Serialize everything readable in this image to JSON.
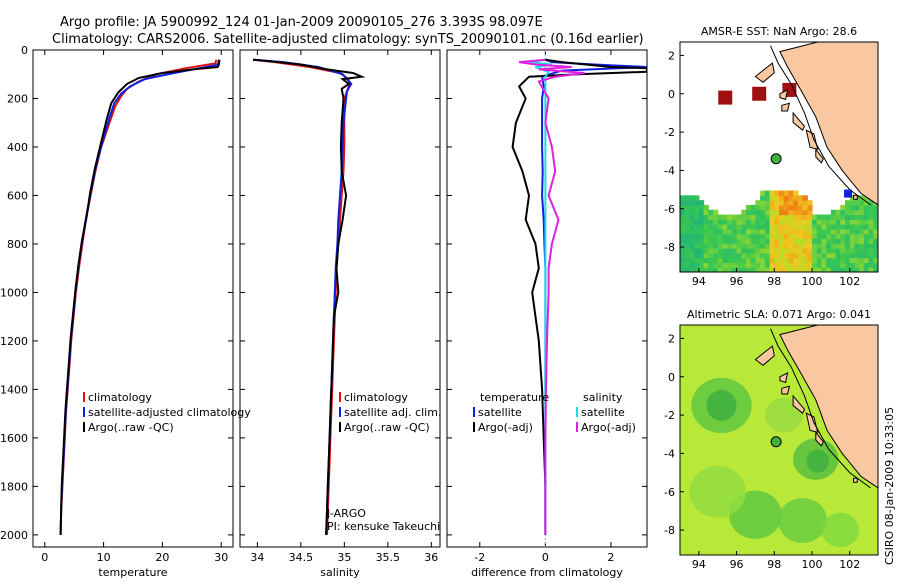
{
  "header": {
    "line1": "Argo profile: JA 5900992_124 01-Jan-2009 20090105_276 3.393S 98.097E",
    "line2": "Climatology: CARS2006. Satellite-adjusted climatology: synTS_20090101.nc (0.16d earlier)"
  },
  "side_text": "CSIRO 08-Jan-2009 10:33:05",
  "colors": {
    "climatology": "#e01010",
    "satellite": "#1020e0",
    "argo": "#000000",
    "satellite_diff": "#20d8e8",
    "argo_adj": "#e020e0",
    "land": "#f9c8a0"
  },
  "chart_data": [
    {
      "type": "line",
      "id": "temp",
      "xlabel": "temperature",
      "xlim": [
        -2,
        32
      ],
      "ylim": [
        2050,
        0
      ],
      "xticks": [
        0,
        10,
        20,
        30
      ],
      "yticks": [
        0,
        200,
        400,
        600,
        800,
        1000,
        1200,
        1400,
        1600,
        1800,
        2000
      ],
      "legend": [
        "climatology",
        "satellite-adjusted climatology",
        "Argo(..raw -QC)"
      ],
      "series": [
        {
          "name": "climatology",
          "color": "#e01010",
          "points": [
            [
              29.2,
              40
            ],
            [
              29.0,
              55
            ],
            [
              24,
              75
            ],
            [
              19,
              100
            ],
            [
              16,
              130
            ],
            [
              14,
              160
            ],
            [
              13,
              190
            ],
            [
              12,
              230
            ],
            [
              11,
              300
            ],
            [
              9.6,
              400
            ],
            [
              8.6,
              500
            ],
            [
              7.8,
              600
            ],
            [
              7.0,
              700
            ],
            [
              6.4,
              800
            ],
            [
              5.8,
              900
            ],
            [
              5.3,
              1000
            ],
            [
              4.9,
              1100
            ],
            [
              4.5,
              1200
            ],
            [
              4.2,
              1300
            ],
            [
              3.9,
              1400
            ],
            [
              3.6,
              1500
            ],
            [
              3.4,
              1600
            ],
            [
              3.2,
              1700
            ],
            [
              3.0,
              1800
            ],
            [
              2.8,
              1900
            ],
            [
              2.7,
              2000
            ]
          ]
        },
        {
          "name": "satellite",
          "color": "#1020e0",
          "points": [
            [
              29.6,
              40
            ],
            [
              29.5,
              55
            ],
            [
              29.2,
              62
            ],
            [
              22,
              95
            ],
            [
              17,
              120
            ],
            [
              14.5,
              150
            ],
            [
              13,
              180
            ],
            [
              11.8,
              220
            ],
            [
              11,
              280
            ],
            [
              9.8,
              380
            ],
            [
              8.7,
              480
            ],
            [
              7.9,
              580
            ],
            [
              7.1,
              680
            ],
            [
              6.4,
              780
            ],
            [
              5.8,
              880
            ],
            [
              5.3,
              980
            ],
            [
              4.9,
              1080
            ],
            [
              4.5,
              1180
            ],
            [
              4.2,
              1280
            ],
            [
              3.9,
              1380
            ],
            [
              3.6,
              1480
            ],
            [
              3.4,
              1580
            ],
            [
              3.2,
              1680
            ],
            [
              3.0,
              1780
            ],
            [
              2.8,
              1880
            ],
            [
              2.7,
              2000
            ]
          ]
        },
        {
          "name": "Argo",
          "color": "#000000",
          "points": [
            [
              29.7,
              40
            ],
            [
              29.6,
              60
            ],
            [
              29.4,
              70
            ],
            [
              26,
              78
            ],
            [
              20,
              95
            ],
            [
              16,
              115
            ],
            [
              14,
              140
            ],
            [
              12.5,
              175
            ],
            [
              11.3,
              220
            ],
            [
              10.5,
              290
            ],
            [
              9.5,
              390
            ],
            [
              8.5,
              490
            ],
            [
              7.7,
              590
            ],
            [
              7.1,
              690
            ],
            [
              6.3,
              790
            ],
            [
              5.7,
              890
            ],
            [
              5.2,
              990
            ],
            [
              4.8,
              1090
            ],
            [
              4.4,
              1190
            ],
            [
              4.1,
              1290
            ],
            [
              3.8,
              1390
            ],
            [
              3.5,
              1490
            ],
            [
              3.3,
              1590
            ],
            [
              3.1,
              1690
            ],
            [
              2.9,
              1790
            ],
            [
              2.8,
              1890
            ],
            [
              2.7,
              2000
            ]
          ]
        }
      ]
    },
    {
      "type": "line",
      "id": "sal",
      "xlabel": "salinity",
      "xlim": [
        33.8,
        36.1
      ],
      "ylim": [
        2050,
        0
      ],
      "xticks": [
        34,
        34.5,
        35,
        35.5,
        36
      ],
      "legend": [
        "climatology",
        "satellite adj. clim.",
        "Argo(..raw -QC)"
      ],
      "annotation": [
        "J-ARGO",
        "PI: kensuke Takeuchi"
      ],
      "series": [
        {
          "name": "climatology",
          "color": "#e01010",
          "points": [
            [
              33.95,
              40
            ],
            [
              34.2,
              50
            ],
            [
              34.6,
              70
            ],
            [
              34.95,
              95
            ],
            [
              35.05,
              120
            ],
            [
              35.05,
              150
            ],
            [
              35.0,
              200
            ],
            [
              35.0,
              300
            ],
            [
              35.0,
              400
            ],
            [
              34.99,
              500
            ],
            [
              34.97,
              600
            ],
            [
              34.95,
              700
            ],
            [
              34.93,
              800
            ],
            [
              34.91,
              900
            ],
            [
              34.9,
              1000
            ],
            [
              34.89,
              1100
            ],
            [
              34.88,
              1200
            ],
            [
              34.87,
              1300
            ],
            [
              34.86,
              1400
            ],
            [
              34.85,
              1500
            ],
            [
              34.84,
              1600
            ],
            [
              34.83,
              1700
            ],
            [
              34.82,
              1800
            ],
            [
              34.81,
              1900
            ],
            [
              34.8,
              2000
            ]
          ]
        },
        {
          "name": "satellite",
          "color": "#1020e0",
          "points": [
            [
              33.95,
              40
            ],
            [
              34.3,
              50
            ],
            [
              34.7,
              70
            ],
            [
              34.98,
              100
            ],
            [
              35.08,
              140
            ],
            [
              35.03,
              170
            ],
            [
              35.02,
              200
            ],
            [
              34.99,
              300
            ],
            [
              34.98,
              400
            ],
            [
              34.97,
              500
            ],
            [
              34.95,
              600
            ],
            [
              34.93,
              700
            ],
            [
              34.92,
              800
            ],
            [
              34.9,
              900
            ],
            [
              34.89,
              1000
            ],
            [
              34.88,
              1100
            ],
            [
              34.87,
              1200
            ],
            [
              34.86,
              1300
            ],
            [
              34.85,
              1400
            ],
            [
              34.84,
              1500
            ],
            [
              34.83,
              1600
            ],
            [
              34.82,
              1700
            ],
            [
              34.81,
              1800
            ],
            [
              34.8,
              1900
            ],
            [
              34.79,
              2000
            ]
          ]
        },
        {
          "name": "Argo",
          "color": "#000000",
          "points": [
            [
              33.95,
              40
            ],
            [
              34.1,
              45
            ],
            [
              34.5,
              60
            ],
            [
              34.8,
              80
            ],
            [
              35.1,
              95
            ],
            [
              35.2,
              110
            ],
            [
              34.98,
              120
            ],
            [
              35.05,
              140
            ],
            [
              34.97,
              160
            ],
            [
              34.99,
              200
            ],
            [
              34.97,
              300
            ],
            [
              34.96,
              400
            ],
            [
              34.97,
              500
            ],
            [
              35.02,
              600
            ],
            [
              34.98,
              700
            ],
            [
              34.93,
              800
            ],
            [
              34.91,
              900
            ],
            [
              34.93,
              1000
            ],
            [
              34.88,
              1100
            ],
            [
              34.87,
              1200
            ],
            [
              34.86,
              1300
            ],
            [
              34.85,
              1400
            ],
            [
              34.84,
              1500
            ],
            [
              34.83,
              1600
            ],
            [
              34.82,
              1700
            ],
            [
              34.81,
              1800
            ],
            [
              34.8,
              1900
            ],
            [
              34.79,
              2000
            ]
          ]
        }
      ]
    },
    {
      "type": "line",
      "id": "diff",
      "xlabel": "difference from climatology",
      "xlim": [
        -3,
        3.1
      ],
      "ylim": [
        2050,
        0
      ],
      "xticks": [
        -2,
        0,
        2
      ],
      "legend_temp": [
        "temperature",
        "satellite",
        "Argo(-adj)"
      ],
      "legend_sal": [
        "salinity",
        "satellite",
        "Argo(-adj)"
      ],
      "series": [
        {
          "name": "temp satellite",
          "color": "#1020e0",
          "points": [
            [
              0,
              40
            ],
            [
              0.2,
              50
            ],
            [
              1.5,
              60
            ],
            [
              3.1,
              70
            ],
            [
              0.5,
              85
            ],
            [
              -0.1,
              110
            ],
            [
              -0.05,
              150
            ],
            [
              -0.1,
              200
            ],
            [
              -0.1,
              300
            ],
            [
              -0.1,
              400
            ],
            [
              -0.08,
              500
            ],
            [
              -0.1,
              600
            ],
            [
              -0.05,
              700
            ],
            [
              -0.03,
              800
            ],
            [
              0,
              900
            ],
            [
              0,
              1000
            ],
            [
              0,
              1200
            ],
            [
              0,
              1400
            ],
            [
              0,
              1600
            ],
            [
              0,
              1800
            ],
            [
              0,
              2000
            ]
          ]
        },
        {
          "name": "temp Argo",
          "color": "#000000",
          "points": [
            [
              0,
              40
            ],
            [
              0.5,
              50
            ],
            [
              2.0,
              70
            ],
            [
              3.1,
              75
            ],
            [
              3.1,
              90
            ],
            [
              1.0,
              100
            ],
            [
              -0.5,
              110
            ],
            [
              -0.8,
              150
            ],
            [
              -0.6,
              200
            ],
            [
              -0.9,
              300
            ],
            [
              -1.0,
              400
            ],
            [
              -0.7,
              500
            ],
            [
              -0.5,
              600
            ],
            [
              -0.6,
              700
            ],
            [
              -0.3,
              800
            ],
            [
              -0.2,
              900
            ],
            [
              -0.4,
              1000
            ],
            [
              -0.3,
              1100
            ],
            [
              -0.2,
              1200
            ],
            [
              -0.1,
              1400
            ],
            [
              -0.05,
              1600
            ],
            [
              0,
              1800
            ],
            [
              0,
              2000
            ]
          ]
        },
        {
          "name": "sal satellite",
          "color": "#20d8e8",
          "points": [
            [
              0,
              40
            ],
            [
              -0.5,
              50
            ],
            [
              0.2,
              60
            ],
            [
              -0.3,
              70
            ],
            [
              0.1,
              90
            ],
            [
              0,
              110
            ],
            [
              0,
              200
            ],
            [
              0,
              400
            ],
            [
              0,
              600
            ],
            [
              0,
              800
            ],
            [
              0,
              1000
            ],
            [
              0,
              1200
            ],
            [
              0,
              1400
            ],
            [
              0,
              1600
            ],
            [
              0,
              1800
            ],
            [
              0,
              2000
            ]
          ]
        },
        {
          "name": "sal Argo",
          "color": "#e020e0",
          "points": [
            [
              0,
              40
            ],
            [
              -0.8,
              50
            ],
            [
              -0.3,
              60
            ],
            [
              0.8,
              70
            ],
            [
              -0.2,
              80
            ],
            [
              1.2,
              95
            ],
            [
              0.3,
              110
            ],
            [
              -0.2,
              130
            ],
            [
              0.1,
              200
            ],
            [
              0,
              300
            ],
            [
              0.2,
              400
            ],
            [
              0.3,
              500
            ],
            [
              0.1,
              600
            ],
            [
              0.4,
              700
            ],
            [
              0.2,
              800
            ],
            [
              0.1,
              900
            ],
            [
              0.1,
              1000
            ],
            [
              0.05,
              1200
            ],
            [
              0.02,
              1400
            ],
            [
              0,
              1600
            ],
            [
              0,
              1800
            ],
            [
              0,
              2000
            ]
          ]
        }
      ]
    },
    {
      "type": "heatmap",
      "id": "sst",
      "title": "AMSR-E SST: NaN Argo: 28.6",
      "xlim": [
        93,
        103.5
      ],
      "ylim": [
        -9.3,
        2.7
      ],
      "xticks": [
        94,
        96,
        98,
        100,
        102
      ],
      "yticks": [
        -8,
        -6,
        -4,
        -2,
        0,
        2
      ],
      "profile": [
        98.097,
        -3.393
      ]
    },
    {
      "type": "heatmap",
      "id": "sla",
      "title": "Altimetric SLA: 0.071 Argo: 0.041",
      "xlim": [
        93,
        103.5
      ],
      "ylim": [
        -9.3,
        2.7
      ],
      "xticks": [
        94,
        96,
        98,
        100,
        102
      ],
      "yticks": [
        -8,
        -6,
        -4,
        -2,
        0,
        2
      ],
      "profile": [
        98.097,
        -3.393
      ]
    }
  ]
}
